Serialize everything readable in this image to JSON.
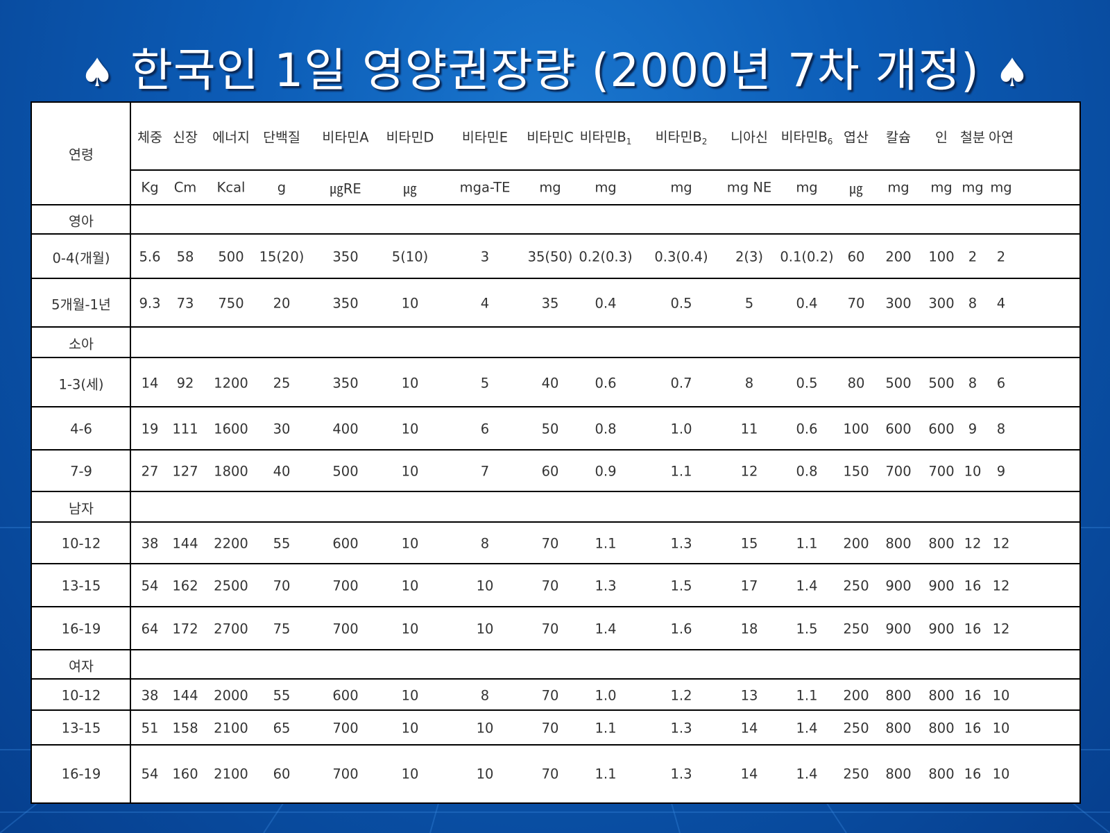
{
  "title": "한국인 1일 영양권장량 (2000년 7차 개정)",
  "spade_icon": "♠",
  "table": {
    "age_header": "연령",
    "columns": [
      {
        "name": "체중",
        "unit": "Kg"
      },
      {
        "name": "신장",
        "unit": "Cm"
      },
      {
        "name": "에너지",
        "unit": "Kcal"
      },
      {
        "name": "단백질",
        "unit": "g"
      },
      {
        "name": "비타민A",
        "unit": "㎍RE"
      },
      {
        "name": "비타민D",
        "unit": "㎍"
      },
      {
        "name": "비타민E",
        "unit": "mga-TE"
      },
      {
        "name": "비타민C",
        "unit": "mg"
      },
      {
        "name": "비타민B",
        "sub": "1",
        "unit": "mg"
      },
      {
        "name": "비타민B",
        "sub": "2",
        "unit": "mg"
      },
      {
        "name": "니아신",
        "unit": "mg NE"
      },
      {
        "name": "비타민B",
        "sub": "6",
        "unit": "mg"
      },
      {
        "name": "엽산",
        "unit": "㎍"
      },
      {
        "name": "칼슘",
        "unit": "mg"
      },
      {
        "name": "인",
        "unit": "mg"
      },
      {
        "name": "철분",
        "unit": "mg"
      },
      {
        "name": "아연",
        "unit": "mg"
      }
    ],
    "rows": [
      {
        "label": "영아",
        "group": true,
        "values": []
      },
      {
        "label": "0-4(개월)",
        "values": [
          "5.6",
          "58",
          "500",
          "15(20)",
          "350",
          "5(10)",
          "3",
          "35(50)",
          "0.2(0.3)",
          "0.3(0.4)",
          "2(3)",
          "0.1(0.2)",
          "60",
          "200",
          "100",
          "2",
          "2"
        ]
      },
      {
        "label": "5개월-1년",
        "values": [
          "9.3",
          "73",
          "750",
          "20",
          "350",
          "10",
          "4",
          "35",
          "0.4",
          "0.5",
          "5",
          "0.4",
          "70",
          "300",
          "300",
          "8",
          "4"
        ]
      },
      {
        "label": "소아",
        "group": true,
        "values": []
      },
      {
        "label": "1-3(세)",
        "values": [
          "14",
          "92",
          "1200",
          "25",
          "350",
          "10",
          "5",
          "40",
          "0.6",
          "0.7",
          "8",
          "0.5",
          "80",
          "500",
          "500",
          "8",
          "6"
        ]
      },
      {
        "label": "4-6",
        "values": [
          "19",
          "111",
          "1600",
          "30",
          "400",
          "10",
          "6",
          "50",
          "0.8",
          "1.0",
          "11",
          "0.6",
          "100",
          "600",
          "600",
          "9",
          "8"
        ]
      },
      {
        "label": "7-9",
        "values": [
          "27",
          "127",
          "1800",
          "40",
          "500",
          "10",
          "7",
          "60",
          "0.9",
          "1.1",
          "12",
          "0.8",
          "150",
          "700",
          "700",
          "10",
          "9"
        ]
      },
      {
        "label": "남자",
        "group": true,
        "values": []
      },
      {
        "label": "10-12",
        "values": [
          "38",
          "144",
          "2200",
          "55",
          "600",
          "10",
          "8",
          "70",
          "1.1",
          "1.3",
          "15",
          "1.1",
          "200",
          "800",
          "800",
          "12",
          "12"
        ]
      },
      {
        "label": "13-15",
        "values": [
          "54",
          "162",
          "2500",
          "70",
          "700",
          "10",
          "10",
          "70",
          "1.3",
          "1.5",
          "17",
          "1.4",
          "250",
          "900",
          "900",
          "16",
          "12"
        ]
      },
      {
        "label": "16-19",
        "values": [
          "64",
          "172",
          "2700",
          "75",
          "700",
          "10",
          "10",
          "70",
          "1.4",
          "1.6",
          "18",
          "1.5",
          "250",
          "900",
          "900",
          "16",
          "12"
        ]
      },
      {
        "label": "여자",
        "group": true,
        "values": []
      },
      {
        "label": "10-12",
        "values": [
          "38",
          "144",
          "2000",
          "55",
          "600",
          "10",
          "8",
          "70",
          "1.0",
          "1.2",
          "13",
          "1.1",
          "200",
          "800",
          "800",
          "16",
          "10"
        ]
      },
      {
        "label": "13-15",
        "values": [
          "51",
          "158",
          "2100",
          "65",
          "700",
          "10",
          "10",
          "70",
          "1.1",
          "1.3",
          "14",
          "1.4",
          "250",
          "800",
          "800",
          "16",
          "10"
        ]
      },
      {
        "label": "16-19",
        "values": [
          "54",
          "160",
          "2100",
          "60",
          "700",
          "10",
          "10",
          "70",
          "1.1",
          "1.3",
          "14",
          "1.4",
          "250",
          "800",
          "800",
          "16",
          "10"
        ]
      }
    ]
  }
}
